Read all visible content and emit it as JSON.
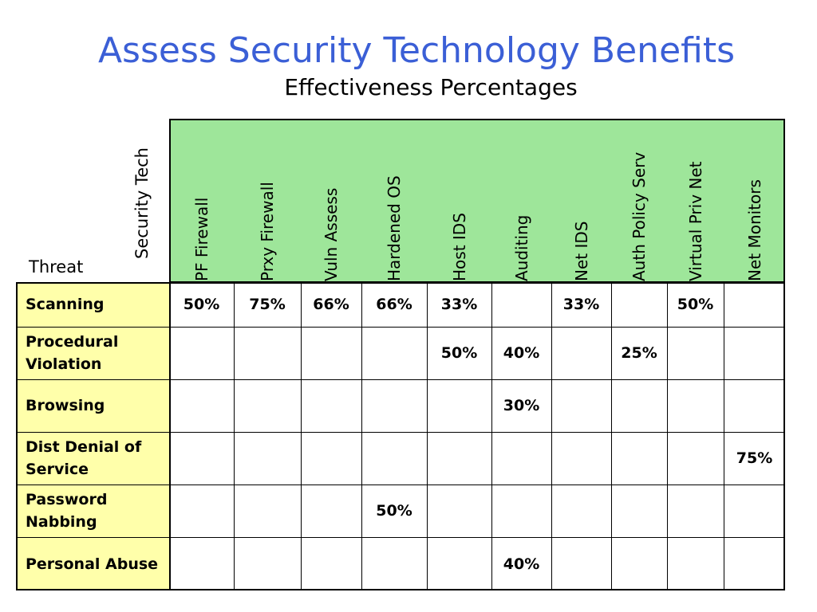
{
  "title": "Assess Security Technology Benefits",
  "subtitle": "Effectiveness Percentages",
  "corner": {
    "threat_label": "Threat",
    "tech_label": "Security Tech"
  },
  "technologies": [
    "PF Firewall",
    "Prxy Firewall",
    "Vuln Assess",
    "Hardened OS",
    "Host IDS",
    "Auditing",
    "Net IDS",
    "Auth Policy Serv",
    "Virtual Priv Net",
    "Net Monitors"
  ],
  "threats": [
    {
      "label": "Scanning",
      "values": [
        "50%",
        "75%",
        "66%",
        "66%",
        "33%",
        "",
        "33%",
        "",
        "50%",
        ""
      ]
    },
    {
      "label": "Procedural Violation",
      "values": [
        "",
        "",
        "",
        "",
        "50%",
        "40%",
        "",
        "25%",
        "",
        ""
      ]
    },
    {
      "label": "Browsing",
      "values": [
        "",
        "",
        "",
        "",
        "",
        "30%",
        "",
        "",
        "",
        ""
      ]
    },
    {
      "label": "Dist Denial of Service",
      "values": [
        "",
        "",
        "",
        "",
        "",
        "",
        "",
        "",
        "",
        "75%"
      ]
    },
    {
      "label": "Password Nabbing",
      "values": [
        "",
        "",
        "",
        "50%",
        "",
        "",
        "",
        "",
        "",
        ""
      ]
    },
    {
      "label": "Personal Abuse",
      "values": [
        "",
        "",
        "",
        "",
        "",
        "40%",
        "",
        "",
        "",
        ""
      ]
    }
  ],
  "colors": {
    "title": "#3b5fd6",
    "header_fill": "#9ee69a",
    "row_label_fill": "#ffffaa"
  }
}
